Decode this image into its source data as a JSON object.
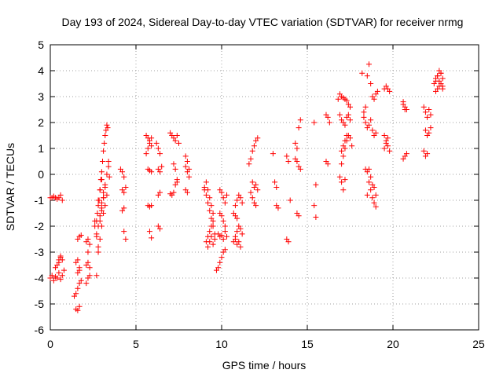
{
  "chart_data": {
    "type": "scatter",
    "title": "Day 193 of 2024, Sidereal Day-to-day VTEC variation (SDTVAR) for receiver nrmg",
    "xlabel": "GPS time / hours",
    "ylabel": "SDTVAR / TECUs",
    "xlim": [
      0,
      25
    ],
    "ylim": [
      -6,
      5
    ],
    "xticks": [
      "0",
      "5",
      "10",
      "15",
      "20",
      "25"
    ],
    "yticks": [
      "-6",
      "-5",
      "-4",
      "-3",
      "-2",
      "-1",
      "0",
      "1",
      "2",
      "3",
      "4",
      "5"
    ],
    "grid": true,
    "marker": "plus",
    "color": "#ff0000",
    "series": [
      {
        "name": "SDTVAR",
        "x": [
          0.0,
          0.1,
          0.2,
          0.3,
          0.4,
          0.5,
          0.6,
          0.7,
          0.0,
          0.1,
          0.2,
          0.3,
          0.4,
          0.5,
          0.6,
          0.7,
          0.8,
          0.3,
          0.5,
          0.6,
          0.4,
          0.5,
          0.6,
          0.7,
          1.4,
          1.5,
          1.6,
          1.7,
          1.8,
          1.5,
          1.6,
          1.7,
          1.5,
          1.6,
          1.7,
          1.6,
          1.7,
          1.8,
          1.6,
          1.7,
          2.1,
          2.2,
          2.3,
          2.1,
          2.2,
          2.3,
          2.1,
          2.2,
          2.3,
          2.2,
          2.6,
          2.7,
          2.75,
          2.8,
          2.85,
          2.9,
          2.95,
          3.0,
          3.05,
          3.1,
          3.15,
          3.2,
          3.25,
          3.3,
          3.35,
          3.4,
          3.45,
          2.7,
          2.8,
          2.9,
          3.0,
          3.1,
          3.2,
          3.3,
          2.8,
          2.9,
          3.0,
          2.7,
          2.8,
          2.9,
          3.0,
          3.1,
          2.6,
          2.7,
          2.8,
          3.0,
          3.1,
          3.2,
          2.9,
          3.0,
          3.1,
          3.2,
          3.3,
          3.4,
          4.1,
          4.2,
          4.3,
          4.2,
          4.3,
          4.4,
          4.2,
          4.3,
          4.3,
          4.4,
          5.6,
          5.7,
          5.8,
          5.9,
          5.6,
          5.7,
          5.8,
          5.9,
          5.7,
          5.8,
          5.9,
          5.7,
          5.8,
          5.9,
          5.8,
          5.9,
          6.2,
          6.3,
          6.4,
          6.3,
          6.4,
          6.5,
          6.3,
          6.4,
          6.3,
          6.4,
          7.0,
          7.1,
          7.2,
          7.3,
          7.4,
          7.5,
          7.2,
          7.3,
          7.4,
          7.3,
          7.4,
          7.1,
          7.2,
          7.0,
          7.9,
          8.0,
          8.1,
          7.9,
          8.0,
          8.1,
          7.9,
          8.0,
          9.0,
          9.1,
          9.2,
          9.3,
          9.4,
          9.5,
          9.6,
          9.1,
          9.2,
          9.3,
          9.4,
          9.5,
          9.0,
          9.1,
          9.2,
          9.3,
          9.4,
          9.5,
          9.2,
          9.3,
          9.4,
          9.5,
          9.6,
          9.7,
          9.8,
          9.9,
          10.0,
          10.1,
          10.2,
          9.8,
          9.9,
          10.0,
          10.1,
          10.2,
          10.3,
          9.9,
          10.0,
          10.1,
          10.2,
          10.3,
          9.9,
          10.0,
          10.1,
          10.2,
          10.7,
          10.8,
          10.9,
          11.0,
          11.1,
          11.2,
          10.8,
          10.9,
          11.0,
          11.1,
          11.2,
          10.8,
          10.9,
          11.0,
          11.1,
          10.7,
          10.8,
          10.9,
          11.6,
          11.7,
          11.8,
          11.9,
          12.0,
          12.1,
          11.7,
          11.8,
          11.9,
          12.0,
          11.8,
          11.9,
          12.0,
          12.1,
          13.0,
          13.1,
          13.2,
          13.2,
          13.3,
          13.8,
          13.9,
          13.8,
          13.9,
          14.0,
          14.3,
          14.4,
          14.5,
          14.6,
          14.3,
          14.4,
          14.5,
          14.6,
          14.4,
          14.5,
          15.4,
          15.5,
          15.4,
          15.5,
          16.1,
          16.2,
          16.3,
          16.1,
          16.2,
          16.8,
          16.9,
          17.0,
          17.1,
          17.2,
          17.3,
          17.4,
          17.5,
          16.9,
          17.0,
          17.1,
          17.2,
          17.3,
          17.4,
          17.5,
          17.0,
          17.1,
          17.2,
          17.3,
          17.4,
          17.5,
          17.6,
          17.0,
          17.1,
          17.2,
          17.3,
          16.9,
          17.0,
          17.1,
          17.2,
          18.2,
          18.3,
          18.4,
          18.5,
          18.6,
          18.7,
          18.8,
          18.9,
          19.0,
          19.1,
          18.3,
          18.4,
          18.5,
          18.6,
          18.7,
          18.8,
          18.9,
          19.0,
          18.4,
          18.5,
          18.6,
          18.7,
          18.8,
          18.9,
          19.0,
          18.5,
          18.6,
          18.7,
          18.8,
          18.9,
          19.0,
          19.5,
          19.6,
          19.7,
          19.8,
          19.5,
          19.6,
          19.7,
          19.8,
          19.5,
          19.6,
          19.7,
          20.6,
          20.7,
          20.8,
          20.6,
          20.7,
          20.8,
          20.6,
          20.7,
          21.8,
          21.9,
          22.0,
          22.1,
          22.2,
          21.9,
          22.0,
          22.1,
          22.2,
          21.8,
          21.9,
          22.0,
          22.4,
          22.5,
          22.6,
          22.7,
          22.8,
          22.9,
          22.5,
          22.6,
          22.7,
          22.8,
          22.9,
          22.5,
          22.6,
          22.7,
          22.8,
          22.9
        ],
        "y": [
          -0.9,
          -0.9,
          -0.85,
          -0.9,
          -0.95,
          -0.9,
          -0.8,
          -1.0,
          -4.0,
          -3.9,
          -4.1,
          -3.95,
          -4.0,
          -3.8,
          -4.05,
          -3.9,
          -3.7,
          -3.6,
          -3.3,
          -3.2,
          -3.5,
          -3.4,
          -3.15,
          -3.3,
          -4.7,
          -4.6,
          -4.4,
          -4.2,
          -4.1,
          -5.2,
          -5.25,
          -5.1,
          -3.4,
          -3.3,
          -3.6,
          -2.5,
          -2.4,
          -2.35,
          -3.8,
          -3.7,
          -4.2,
          -4.0,
          -3.9,
          -3.5,
          -3.4,
          -3.6,
          -2.6,
          -2.5,
          -2.7,
          -3.0,
          -2.0,
          -1.8,
          -1.5,
          -1.2,
          -1.0,
          -0.6,
          -0.2,
          0.1,
          0.5,
          0.9,
          1.2,
          1.5,
          1.7,
          1.9,
          1.8,
          0.3,
          -0.1,
          -3.9,
          -3.0,
          -2.5,
          -2.0,
          -1.5,
          -1.2,
          -0.8,
          -1.0,
          -0.6,
          -0.2,
          -2.3,
          -2.0,
          -1.6,
          -1.1,
          -0.7,
          -1.8,
          -2.4,
          -2.8,
          -1.3,
          -0.9,
          -0.5,
          -1.8,
          -1.4,
          -0.9,
          -0.4,
          0.0,
          0.5,
          0.2,
          0.1,
          -0.1,
          -0.6,
          -0.7,
          -0.5,
          -1.4,
          -1.3,
          -2.2,
          -2.5,
          1.5,
          1.4,
          1.3,
          1.1,
          0.8,
          1.0,
          1.2,
          1.4,
          0.2,
          0.15,
          0.1,
          -1.2,
          -1.25,
          -1.2,
          -2.2,
          -2.45,
          1.2,
          1.0,
          0.8,
          0.2,
          0.1,
          0.3,
          -0.8,
          -0.7,
          -2.0,
          -2.1,
          1.6,
          1.5,
          1.4,
          1.3,
          1.5,
          1.2,
          0.4,
          0.2,
          -0.2,
          -0.4,
          -0.3,
          -0.8,
          -0.7,
          -0.75,
          0.7,
          0.5,
          0.2,
          0.3,
          0.1,
          -0.1,
          -0.6,
          -0.7,
          -0.6,
          -0.8,
          -1.1,
          -1.4,
          -1.7,
          -2.0,
          -2.3,
          -2.6,
          -2.4,
          -2.2,
          -2.0,
          -1.8,
          -0.5,
          -0.3,
          -0.6,
          -0.9,
          -1.2,
          -1.5,
          -2.8,
          -2.6,
          -2.4,
          -2.7,
          -2.5,
          -3.7,
          -3.6,
          -3.4,
          -3.2,
          -3.0,
          -2.9,
          -2.3,
          -2.4,
          -2.35,
          -2.5,
          -2.2,
          -2.4,
          -0.6,
          -0.7,
          -0.9,
          -1.1,
          -0.8,
          -1.5,
          -1.6,
          -1.8,
          -2.0,
          -2.6,
          -2.4,
          -2.2,
          -2.0,
          -2.1,
          -2.3,
          -1.2,
          -1.0,
          -0.8,
          -0.9,
          -1.1,
          -2.5,
          -2.7,
          -2.6,
          -2.8,
          -1.5,
          -1.6,
          -1.7,
          0.4,
          0.6,
          0.9,
          1.1,
          1.3,
          1.4,
          -0.7,
          -0.9,
          -1.1,
          -1.2,
          -0.3,
          -0.5,
          -0.4,
          -0.6,
          0.8,
          -0.3,
          -0.5,
          -1.2,
          -1.3,
          0.7,
          0.5,
          -2.5,
          -2.6,
          -1.0,
          1.2,
          1.0,
          1.8,
          2.1,
          0.6,
          0.5,
          0.3,
          0.2,
          -1.5,
          -1.6,
          2.0,
          -0.4,
          -1.2,
          -1.65,
          2.3,
          2.2,
          2.0,
          0.5,
          0.4,
          2.9,
          3.1,
          3.0,
          2.95,
          2.9,
          2.85,
          2.7,
          2.6,
          2.3,
          2.1,
          2.0,
          1.9,
          2.2,
          2.3,
          2.1,
          0.4,
          0.7,
          1.0,
          1.3,
          1.5,
          1.4,
          1.1,
          0.9,
          1.1,
          1.3,
          1.5,
          -0.1,
          -0.3,
          -0.6,
          -0.2,
          3.9,
          2.4,
          2.6,
          3.8,
          4.25,
          3.5,
          3.0,
          2.9,
          3.1,
          3.2,
          2.2,
          2.0,
          1.8,
          1.9,
          2.1,
          1.7,
          1.5,
          1.6,
          0.2,
          0.1,
          -0.3,
          -0.6,
          -0.9,
          -1.1,
          -1.25,
          -0.8,
          0.2,
          -0.1,
          -0.4,
          -0.5,
          -0.8,
          3.3,
          3.4,
          3.3,
          3.2,
          1.5,
          1.3,
          1.1,
          0.9,
          1.0,
          1.2,
          1.4,
          2.8,
          2.6,
          2.5,
          0.6,
          0.7,
          0.8,
          2.7,
          2.5,
          2.6,
          2.4,
          2.2,
          2.5,
          2.3,
          1.7,
          1.5,
          1.6,
          1.8,
          0.9,
          0.7,
          0.8,
          3.5,
          3.6,
          3.8,
          4.0,
          3.9,
          3.7,
          3.2,
          3.3,
          3.4,
          3.5,
          3.3,
          3.7,
          3.8,
          3.6,
          3.9,
          3.4
        ]
      }
    ]
  }
}
